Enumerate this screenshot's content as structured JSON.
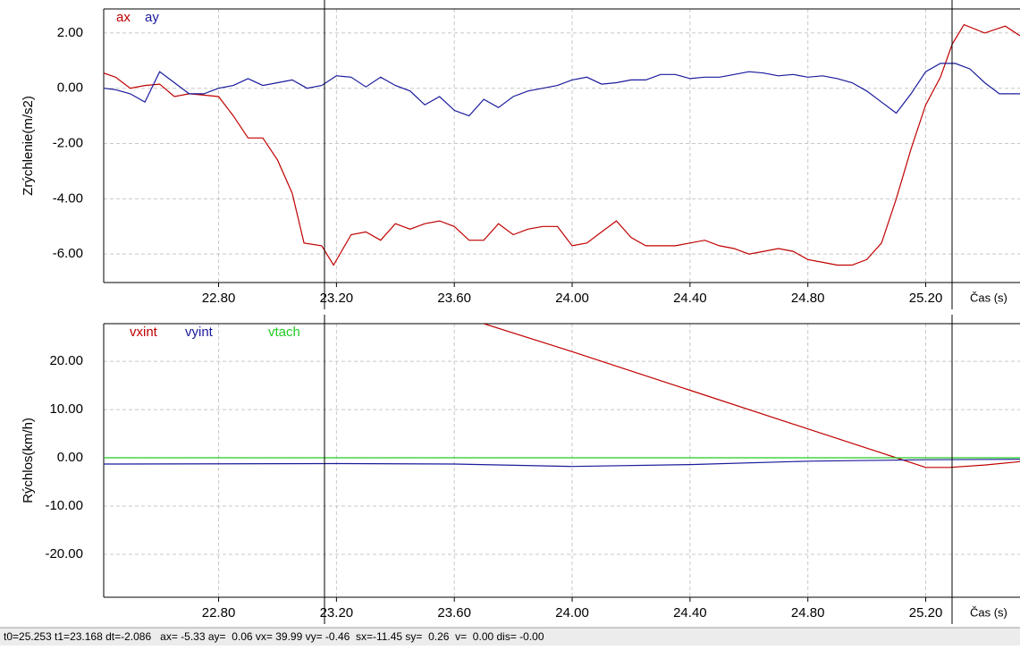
{
  "chart_data": [
    {
      "type": "line",
      "ylabel": "Zrýchlenie(m/s2)",
      "xlabel": "Čas (s)",
      "xlim": [
        22.41,
        25.52
      ],
      "ylim": [
        -7.03,
        2.87
      ],
      "xticks": [
        {
          "value": 22.8,
          "label": "22.80"
        },
        {
          "value": 23.2,
          "label": "23.20"
        },
        {
          "value": 23.6,
          "label": "23.60"
        },
        {
          "value": 24.0,
          "label": "24.00"
        },
        {
          "value": 24.4,
          "label": "24.40"
        },
        {
          "value": 24.8,
          "label": "24.80"
        },
        {
          "value": 25.2,
          "label": "25.20"
        }
      ],
      "yticks": [
        {
          "value": 2,
          "label": "2.00"
        },
        {
          "value": 0,
          "label": "0.00"
        },
        {
          "value": -2,
          "label": "-2.00"
        },
        {
          "value": -4,
          "label": "-4.00"
        },
        {
          "value": -6,
          "label": "-6.00"
        }
      ],
      "grid": true,
      "series": [
        {
          "name": "ax",
          "color": "#c00000",
          "x": [
            22.41,
            22.45,
            22.5,
            22.55,
            22.6,
            22.65,
            22.7,
            22.75,
            22.8,
            22.85,
            22.9,
            22.95,
            23.0,
            23.05,
            23.09,
            23.15,
            23.19,
            23.25,
            23.3,
            23.35,
            23.4,
            23.45,
            23.5,
            23.55,
            23.6,
            23.65,
            23.7,
            23.75,
            23.8,
            23.85,
            23.9,
            23.95,
            24.0,
            24.05,
            24.1,
            24.15,
            24.2,
            24.25,
            24.3,
            24.35,
            24.4,
            24.45,
            24.5,
            24.55,
            24.6,
            24.65,
            24.7,
            24.75,
            24.8,
            24.85,
            24.9,
            24.95,
            25.0,
            25.05,
            25.1,
            25.15,
            25.2,
            25.25,
            25.29,
            25.33,
            25.4,
            25.47,
            25.52
          ],
          "values": [
            0.55,
            0.4,
            0.0,
            0.1,
            0.15,
            -0.3,
            -0.2,
            -0.25,
            -0.3,
            -1.0,
            -1.8,
            -1.8,
            -2.6,
            -3.8,
            -5.6,
            -5.7,
            -6.4,
            -5.3,
            -5.2,
            -5.5,
            -4.9,
            -5.1,
            -4.9,
            -4.8,
            -5.0,
            -5.5,
            -5.5,
            -4.9,
            -5.3,
            -5.1,
            -5.0,
            -5.0,
            -5.7,
            -5.6,
            -5.2,
            -4.8,
            -5.4,
            -5.7,
            -5.7,
            -5.7,
            -5.6,
            -5.5,
            -5.7,
            -5.8,
            -6.0,
            -5.9,
            -5.8,
            -5.9,
            -6.2,
            -6.3,
            -6.4,
            -6.4,
            -6.2,
            -5.6,
            -4.0,
            -2.2,
            -0.6,
            0.4,
            1.6,
            2.3,
            2.0,
            2.25,
            1.9
          ]
        },
        {
          "name": "ay",
          "color": "#1a1a9c",
          "x": [
            22.41,
            22.45,
            22.5,
            22.55,
            22.6,
            22.65,
            22.7,
            22.75,
            22.8,
            22.85,
            22.9,
            22.95,
            23.0,
            23.05,
            23.1,
            23.15,
            23.2,
            23.25,
            23.3,
            23.35,
            23.4,
            23.45,
            23.5,
            23.55,
            23.6,
            23.65,
            23.7,
            23.75,
            23.8,
            23.85,
            23.9,
            23.95,
            24.0,
            24.05,
            24.1,
            24.15,
            24.2,
            24.25,
            24.3,
            24.35,
            24.4,
            24.45,
            24.5,
            24.55,
            24.6,
            24.65,
            24.7,
            24.75,
            24.8,
            24.85,
            24.9,
            24.95,
            25.0,
            25.05,
            25.1,
            25.15,
            25.2,
            25.25,
            25.3,
            25.35,
            25.4,
            25.45,
            25.52
          ],
          "values": [
            0.0,
            -0.05,
            -0.2,
            -0.5,
            0.6,
            0.2,
            -0.2,
            -0.2,
            0.0,
            0.1,
            0.35,
            0.1,
            0.2,
            0.3,
            0.0,
            0.1,
            0.45,
            0.4,
            0.05,
            0.4,
            0.1,
            -0.1,
            -0.6,
            -0.3,
            -0.8,
            -1.0,
            -0.4,
            -0.7,
            -0.3,
            -0.1,
            0.0,
            0.1,
            0.3,
            0.4,
            0.15,
            0.2,
            0.3,
            0.3,
            0.5,
            0.5,
            0.35,
            0.4,
            0.4,
            0.5,
            0.6,
            0.55,
            0.45,
            0.5,
            0.4,
            0.45,
            0.35,
            0.2,
            -0.1,
            -0.5,
            -0.9,
            -0.2,
            0.6,
            0.9,
            0.9,
            0.7,
            0.2,
            -0.2,
            -0.2
          ]
        }
      ]
    },
    {
      "type": "line",
      "ylabel": "Rýchlos(km/h)",
      "xlabel": "Čas (s)",
      "xlim": [
        22.41,
        25.52
      ],
      "ylim": [
        -28.9,
        27.8
      ],
      "xticks": [
        {
          "value": 22.8,
          "label": "22.80"
        },
        {
          "value": 23.2,
          "label": "23.20"
        },
        {
          "value": 23.6,
          "label": "23.60"
        },
        {
          "value": 24.0,
          "label": "24.00"
        },
        {
          "value": 24.4,
          "label": "24.40"
        },
        {
          "value": 24.8,
          "label": "24.80"
        },
        {
          "value": 25.2,
          "label": "25.20"
        }
      ],
      "yticks": [
        {
          "value": 20,
          "label": "20.00"
        },
        {
          "value": 10,
          "label": "10.00"
        },
        {
          "value": 0,
          "label": "0.00"
        },
        {
          "value": -10,
          "label": "-10.00"
        },
        {
          "value": -20,
          "label": "-20.00"
        }
      ],
      "grid": true,
      "series": [
        {
          "name": "vxint",
          "color": "#c00000",
          "x": [
            23.7,
            24.0,
            24.4,
            24.8,
            25.1,
            25.2,
            25.28,
            25.4,
            25.52
          ],
          "values": [
            27.8,
            22.0,
            14.0,
            6.0,
            0.0,
            -2.0,
            -2.0,
            -1.5,
            -0.8
          ]
        },
        {
          "name": "vyint",
          "color": "#1a1a9c",
          "x": [
            22.41,
            23.2,
            23.6,
            24.0,
            24.4,
            24.8,
            25.2,
            25.52
          ],
          "values": [
            -1.3,
            -1.2,
            -1.3,
            -1.8,
            -1.4,
            -0.7,
            -0.4,
            -0.3
          ]
        },
        {
          "name": "vtach",
          "color": "#22cc22",
          "x": [
            22.41,
            25.52
          ],
          "values": [
            0,
            0
          ]
        }
      ]
    }
  ],
  "status_bar": "t0=25.253 t1=23.168 dt=-2.086   ax= -5.33 ay=  0.06 vx= 39.99 vy= -0.46  sx=-11.45 sy=  0.26  v=  0.00 dis= -0.00"
}
